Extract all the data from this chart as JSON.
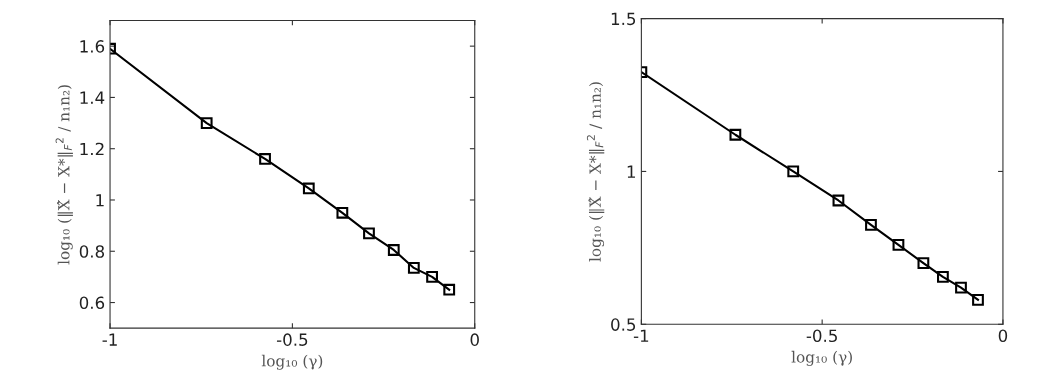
{
  "chart_data": [
    {
      "type": "line",
      "xlabel": "log₁₀ (γ)",
      "ylabel": "log₁₀ (‖X̂ − X*‖$_{F}$$^{2}$ / n₁n₂)",
      "marker": "square",
      "line_style": "solid",
      "x": [
        -1,
        -0.735,
        -0.575,
        -0.455,
        -0.363,
        -0.29,
        -0.222,
        -0.167,
        -0.117,
        -0.07
      ],
      "series": [
        {
          "color": "#000000",
          "values": [
            1.59,
            1.3,
            1.16,
            1.045,
            0.95,
            0.87,
            0.805,
            0.735,
            0.7,
            0.65
          ]
        }
      ],
      "xlim": [
        -1,
        0
      ],
      "xticks": [
        -1,
        -0.5,
        0
      ],
      "ylim": [
        0.5,
        1.7
      ],
      "yticks": [
        0.6,
        0.8,
        1,
        1.2,
        1.4,
        1.6
      ]
    },
    {
      "type": "line",
      "xlabel": "log₁₀ (γ)",
      "ylabel": "log₁₀ (‖X̂ − X*‖$_{F}$$^{2}$ / n₁n₂)",
      "marker": "square",
      "line_style": "solid",
      "x": [
        -1,
        -0.74,
        -0.58,
        -0.455,
        -0.365,
        -0.289,
        -0.22,
        -0.166,
        -0.116,
        -0.069
      ],
      "series": [
        {
          "color": "#000000",
          "values": [
            1.325,
            1.12,
            1.0,
            0.905,
            0.825,
            0.76,
            0.7,
            0.655,
            0.62,
            0.58
          ]
        }
      ],
      "xlim": [
        -1,
        0
      ],
      "xticks": [
        -1,
        -0.5,
        0
      ],
      "ylim": [
        0.5,
        1.5
      ],
      "yticks": [
        0.5,
        1,
        1.5
      ]
    }
  ]
}
